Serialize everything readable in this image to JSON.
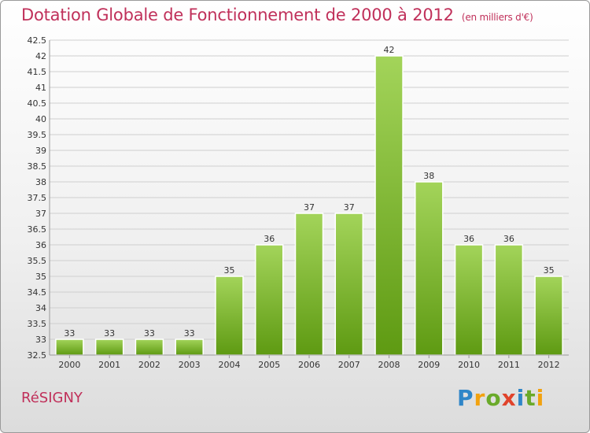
{
  "header": {
    "title": "Dotation Globale de Fonctionnement de 2000 à 2012",
    "subtitle": "(en milliers d'€)"
  },
  "footer": {
    "commune": "RéSIGNY",
    "logo_letters": [
      "P",
      "r",
      "o",
      "x",
      "i",
      "t",
      "i"
    ]
  },
  "colors": {
    "bar_top": "#a3d45a",
    "bar_bottom": "#5e9a12",
    "title": "#c0305a"
  },
  "chart_data": {
    "type": "bar",
    "title": "Dotation Globale de Fonctionnement de 2000 à 2012",
    "subtitle": "(en milliers d'€)",
    "categories": [
      "2000",
      "2001",
      "2002",
      "2003",
      "2004",
      "2005",
      "2006",
      "2007",
      "2008",
      "2009",
      "2010",
      "2011",
      "2012"
    ],
    "values": [
      33,
      33,
      33,
      33,
      35,
      36,
      37,
      37,
      42,
      38,
      36,
      36,
      35
    ],
    "ylim": [
      32.5,
      42.5
    ],
    "yticks": [
      "32.5",
      "33",
      "33.5",
      "34",
      "34.5",
      "35",
      "35.5",
      "36",
      "36.5",
      "37",
      "37.5",
      "38",
      "38.5",
      "39",
      "39.5",
      "40",
      "40.5",
      "41",
      "41.5",
      "42",
      "42.5"
    ],
    "grid": true,
    "legend": "none"
  }
}
